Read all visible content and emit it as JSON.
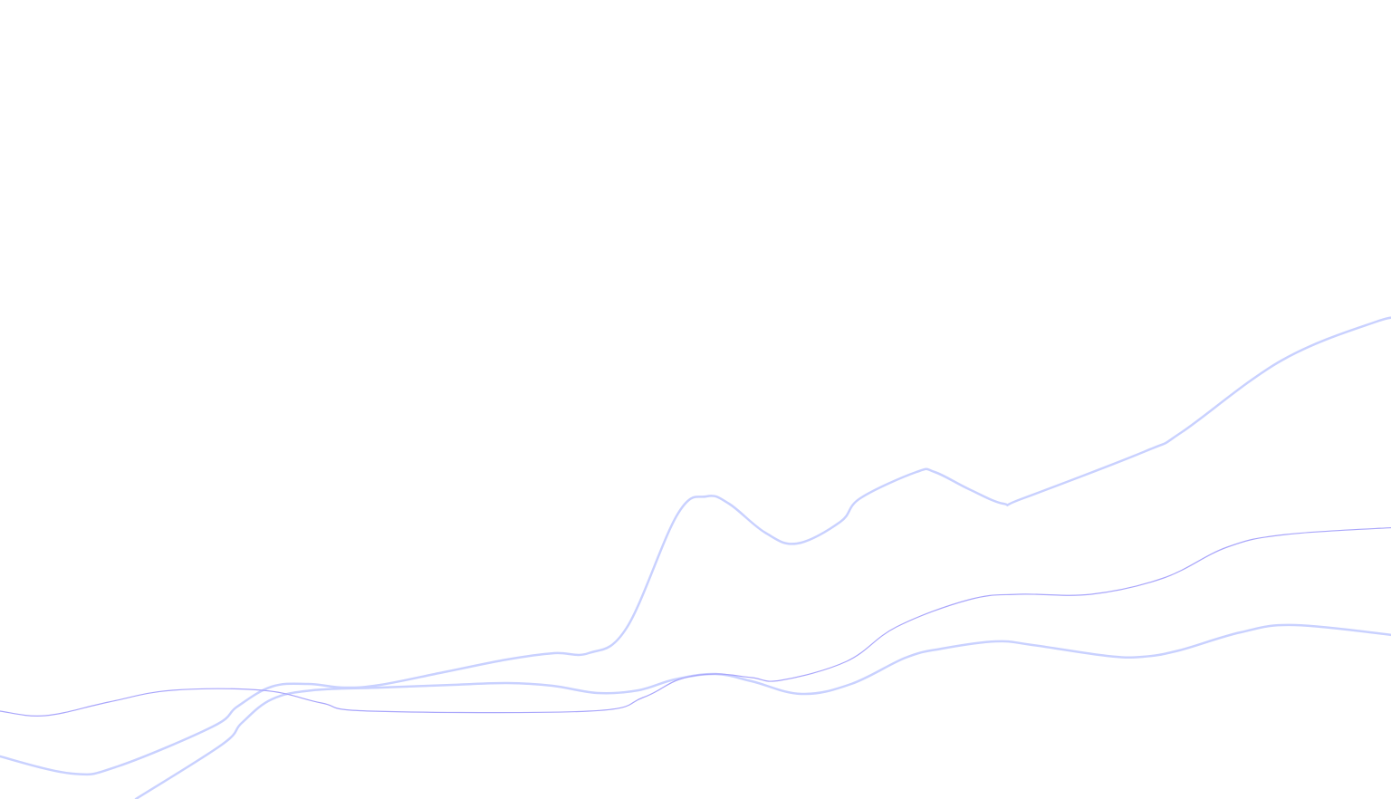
{
  "background": {
    "page_color": "#ffffff",
    "decorative_lines": [
      {
        "name": "thick-line-upper",
        "color": "#c9d1ff",
        "style": "thick"
      },
      {
        "name": "thick-line-lower",
        "color": "#c9d1ff",
        "style": "thick"
      },
      {
        "name": "thin-line",
        "color": "#a9a6fb",
        "style": "thin"
      }
    ]
  }
}
